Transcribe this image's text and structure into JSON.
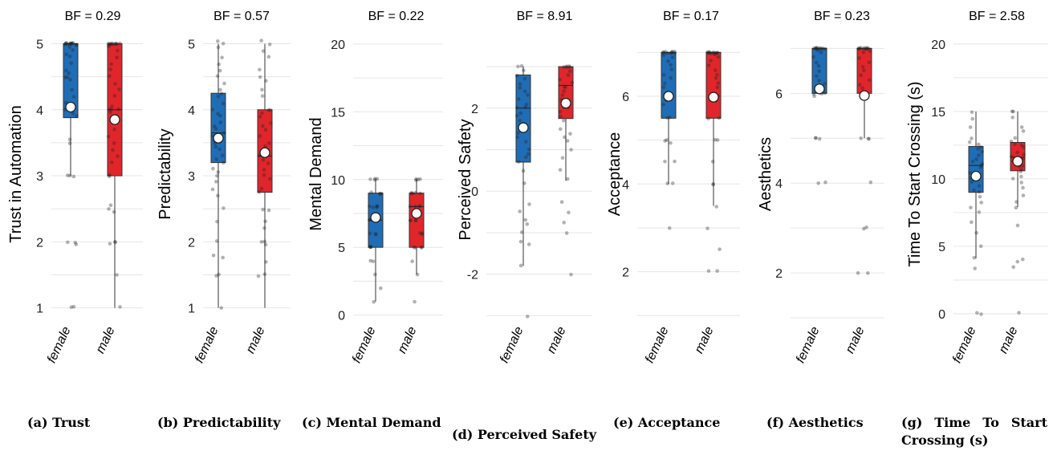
{
  "colors": {
    "female": "#1f6db5",
    "male": "#e0262b",
    "grid": "#e6e6e6",
    "point": "#222222"
  },
  "chart_data": [
    {
      "type": "box",
      "caption": "(a) Trust",
      "bf": "BF = 0.29",
      "ylabel": "Trust in Automation",
      "categories": [
        "female",
        "male"
      ],
      "ylim": [
        0.85,
        5.2
      ],
      "ticks": [
        1,
        2,
        3,
        4,
        5
      ],
      "tick_labels": [
        "1",
        "2",
        "3",
        "4",
        "5"
      ],
      "boxes": [
        {
          "q1": 3.88,
          "median": 5,
          "q3": 5,
          "whisker_low": 3.0,
          "whisker_high": 5,
          "mean": 4.04
        },
        {
          "q1": 3.0,
          "median": 4.0,
          "q3": 5,
          "whisker_low": 1.0,
          "whisker_high": 5,
          "mean": 3.85
        }
      ],
      "points": [
        [
          5,
          5,
          5,
          5,
          5,
          5,
          5,
          5,
          5,
          5,
          5,
          5,
          5,
          4.97,
          4.95,
          4.9,
          4.85,
          4.8,
          4.7,
          4.6,
          4.55,
          4.5,
          4.5,
          4.45,
          4.3,
          4.2,
          4.1,
          4.05,
          4.0,
          3.95,
          3.9,
          3.55,
          3.5,
          3.0,
          3.0,
          2.98,
          2.0,
          2.0,
          1.97,
          1.02,
          1.0
        ],
        [
          5,
          5,
          5,
          5,
          5,
          5,
          5,
          5,
          5,
          5,
          5,
          4.95,
          4.9,
          4.8,
          4.7,
          4.6,
          4.5,
          4.4,
          4.3,
          4.2,
          4.05,
          4.0,
          4.0,
          4.0,
          3.95,
          3.9,
          3.8,
          3.7,
          3.6,
          3.5,
          3.4,
          3.3,
          3.2,
          3.0,
          3.0,
          2.55,
          2.5,
          2.45,
          2.0,
          2.0,
          1.98,
          1.5,
          1.02
        ]
      ]
    },
    {
      "type": "box",
      "caption": "(b) Predictability",
      "bf": "BF = 0.57",
      "ylabel": "Predictability",
      "categories": [
        "female",
        "male"
      ],
      "ylim": [
        0.85,
        5.2
      ],
      "ticks": [
        1,
        2,
        3,
        4,
        5
      ],
      "tick_labels": [
        "1",
        "2",
        "3",
        "4",
        "5"
      ],
      "boxes": [
        {
          "q1": 3.2,
          "median": 3.65,
          "q3": 4.25,
          "whisker_low": 1.0,
          "whisker_high": 5,
          "mean": 3.57
        },
        {
          "q1": 2.75,
          "median": 3.3,
          "q3": 4.0,
          "whisker_low": 1.0,
          "whisker_high": 5,
          "mean": 3.35
        }
      ],
      "points": [
        [
          5.05,
          5.0,
          4.95,
          4.8,
          4.7,
          4.6,
          4.5,
          4.4,
          4.3,
          4.25,
          4.2,
          4.1,
          4.0,
          3.95,
          3.9,
          3.8,
          3.75,
          3.7,
          3.65,
          3.6,
          3.55,
          3.5,
          3.45,
          3.4,
          3.3,
          3.25,
          3.2,
          3.1,
          3.05,
          3.0,
          2.9,
          2.8,
          2.7,
          2.5,
          2.3,
          2.0,
          1.8,
          1.75,
          1.5,
          1.48,
          1.0
        ],
        [
          5.05,
          5.0,
          4.9,
          4.8,
          4.6,
          4.5,
          4.45,
          4.3,
          4.2,
          4.0,
          4.0,
          3.95,
          3.9,
          3.8,
          3.75,
          3.7,
          3.6,
          3.5,
          3.45,
          3.4,
          3.3,
          3.25,
          3.2,
          3.1,
          3.0,
          2.95,
          2.8,
          2.75,
          2.5,
          2.48,
          2.3,
          2.2,
          2.0,
          2.0,
          1.95,
          1.7,
          1.5,
          1.48
        ]
      ]
    },
    {
      "type": "box",
      "caption": "(c) Mental Demand",
      "bf": "BF = 0.22",
      "ylabel": "Mental Demand",
      "categories": [
        "female",
        "male"
      ],
      "ylim": [
        -0.2,
        21.0
      ],
      "ticks": [
        0,
        5,
        10,
        15,
        20
      ],
      "tick_labels": [
        "0",
        "5",
        "10",
        "15",
        "20"
      ],
      "boxes": [
        {
          "q1": 5,
          "median": 7,
          "q3": 9,
          "whisker_low": 1,
          "whisker_high": 10,
          "mean": 7.2
        },
        {
          "q1": 5,
          "median": 8,
          "q3": 9,
          "whisker_low": 3,
          "whisker_high": 10,
          "mean": 7.5
        }
      ],
      "points": [
        [
          10,
          10,
          10,
          10,
          9,
          9,
          9,
          9,
          8,
          8,
          8,
          8,
          8,
          7,
          7,
          7,
          7,
          6,
          6,
          6,
          5,
          5,
          5,
          5,
          4,
          4,
          3,
          2,
          1
        ],
        [
          10,
          10,
          10,
          10,
          9,
          9,
          9,
          9,
          9,
          8,
          8,
          8,
          8,
          7,
          7,
          7,
          7,
          6,
          6,
          6,
          5,
          5,
          5,
          5,
          4,
          3,
          1
        ]
      ]
    },
    {
      "type": "box",
      "caption": "(d) Perceived Safety",
      "bf": "BF = 8.91",
      "ylabel": "Perceived Safety",
      "categories": [
        "female",
        "male"
      ],
      "ylim": [
        -3.05,
        3.6
      ],
      "ticks": [
        -2,
        0,
        2
      ],
      "tick_labels": [
        "-2",
        "0",
        "2"
      ],
      "boxes": [
        {
          "q1": 0.7,
          "median": 2.0,
          "q3": 2.8,
          "whisker_low": -1.8,
          "whisker_high": 3.0,
          "mean": 1.53
        },
        {
          "q1": 1.75,
          "median": 2.55,
          "q3": 3.0,
          "whisker_low": 0.25,
          "whisker_high": 3.0,
          "mean": 2.12
        }
      ],
      "points": [
        [
          3.0,
          3.0,
          2.9,
          2.8,
          2.7,
          2.6,
          2.5,
          2.4,
          2.3,
          2.2,
          2.1,
          2.0,
          2.0,
          1.9,
          1.8,
          1.7,
          1.6,
          1.5,
          1.4,
          1.3,
          1.2,
          1.0,
          0.9,
          0.8,
          0.7,
          0.5,
          0.2,
          -0.3,
          -0.5,
          -0.7,
          -0.8,
          -1.0,
          -1.2,
          -1.3,
          -1.8,
          -3.0
        ],
        [
          3.0,
          3.0,
          3.0,
          3.0,
          3.0,
          2.9,
          2.8,
          2.7,
          2.6,
          2.5,
          2.5,
          2.4,
          2.3,
          2.2,
          2.1,
          2.0,
          2.0,
          1.9,
          1.8,
          1.7,
          1.5,
          1.4,
          1.3,
          1.2,
          1.0,
          0.8,
          0.5,
          0.3,
          -0.25,
          -0.5,
          -0.75,
          -1.0,
          -2.0
        ]
      ]
    },
    {
      "type": "box",
      "caption": "(e) Acceptance",
      "bf": "BF = 0.17",
      "ylabel": "Acceptance",
      "categories": [
        "female",
        "male"
      ],
      "ylim": [
        0.95,
        7.5
      ],
      "ticks": [
        2,
        4,
        6
      ],
      "tick_labels": [
        "2",
        "4",
        "6"
      ],
      "boxes": [
        {
          "q1": 5.5,
          "median": 7,
          "q3": 7,
          "whisker_low": 4.0,
          "whisker_high": 7,
          "mean": 6.0
        },
        {
          "q1": 5.5,
          "median": 7,
          "q3": 7,
          "whisker_low": 3.5,
          "whisker_high": 7,
          "mean": 5.98
        }
      ],
      "points": [
        [
          7,
          7,
          7,
          7,
          7,
          7,
          7,
          7,
          7,
          7,
          6.95,
          6.9,
          6.8,
          6.7,
          6.6,
          6.5,
          6.4,
          6.3,
          6.2,
          6.1,
          6.0,
          6.0,
          5.9,
          5.8,
          5.5,
          5.5,
          5.0,
          5.0,
          4.95,
          4.5,
          4.5,
          4.0,
          4.0,
          3.0
        ],
        [
          7,
          7,
          7,
          7,
          7,
          7,
          7,
          7,
          7,
          7,
          7,
          6.95,
          6.9,
          6.8,
          6.7,
          6.6,
          6.5,
          6.4,
          6.3,
          6.2,
          6.0,
          6.0,
          5.9,
          5.5,
          5.5,
          5.0,
          5.0,
          4.5,
          4.0,
          4.0,
          3.5,
          3.0,
          2.5,
          2.0,
          2.0
        ]
      ]
    },
    {
      "type": "box",
      "caption": "(f) Aesthetics",
      "bf": "BF = 0.23",
      "ylabel": "Aesthetics",
      "categories": [
        "female",
        "male"
      ],
      "ylim": [
        1.0,
        7.4
      ],
      "ticks": [
        2,
        4,
        6
      ],
      "tick_labels": [
        "2",
        "4",
        "6"
      ],
      "boxes": [
        {
          "q1": 6.0,
          "median": 7,
          "q3": 7,
          "whisker_low": 6.0,
          "whisker_high": 7,
          "mean": 6.1
        },
        {
          "q1": 6.0,
          "median": 7,
          "q3": 7,
          "whisker_low": 5.0,
          "whisker_high": 7,
          "mean": 5.95
        }
      ],
      "points": [
        [
          7,
          7,
          7,
          7,
          7,
          7,
          7,
          7,
          7,
          7,
          6.95,
          6.9,
          6.8,
          6.7,
          6.6,
          6.5,
          6.4,
          6.3,
          6.2,
          6.1,
          6.0,
          6.0,
          6.0,
          6.0,
          5.95,
          5.0,
          5.0,
          5.0,
          4.0,
          4.0
        ],
        [
          7,
          7,
          7,
          7,
          7,
          7,
          7,
          7,
          7,
          7,
          6.95,
          6.9,
          6.8,
          6.7,
          6.6,
          6.5,
          6.4,
          6.3,
          6.2,
          6.1,
          6.0,
          6.0,
          6.0,
          5.0,
          5.0,
          5.0,
          4.0,
          3.0,
          3.0,
          2.0,
          2.0
        ]
      ]
    },
    {
      "type": "box",
      "caption": "(g) Time To Start Crossing (s)",
      "bf": "BF = 2.58",
      "ylabel": "Time To Start Crossing (s)",
      "categories": [
        "female",
        "male"
      ],
      "ylim": [
        -0.3,
        21.0
      ],
      "ticks": [
        0,
        5,
        10,
        15,
        20
      ],
      "tick_labels": [
        "0",
        "5",
        "10",
        "15",
        "20"
      ],
      "boxes": [
        {
          "q1": 9.0,
          "median": 11.0,
          "q3": 12.4,
          "whisker_low": 4.1,
          "whisker_high": 15.0,
          "mean": 10.2
        },
        {
          "q1": 10.6,
          "median": 11.6,
          "q3": 12.7,
          "whisker_low": 7.9,
          "whisker_high": 15.0,
          "mean": 11.3
        }
      ],
      "points": [
        [
          15.0,
          14.5,
          13.8,
          13.0,
          12.7,
          12.5,
          12.3,
          12.2,
          12.0,
          11.8,
          11.5,
          11.3,
          11.1,
          11.0,
          10.8,
          10.5,
          10.2,
          10.0,
          9.8,
          9.5,
          9.2,
          9.0,
          8.7,
          8.3,
          7.9,
          7.5,
          6.8,
          6.0,
          5.0,
          4.1,
          3.3,
          0.1,
          0.0
        ],
        [
          15.0,
          15.0,
          14.5,
          13.8,
          13.5,
          13.0,
          12.8,
          12.6,
          12.5,
          12.3,
          12.0,
          11.8,
          11.7,
          11.5,
          11.3,
          11.2,
          11.0,
          10.9,
          10.7,
          10.5,
          10.2,
          10.0,
          9.7,
          9.3,
          8.8,
          8.3,
          7.9,
          6.5,
          4.0,
          3.8,
          3.5,
          0.1
        ]
      ]
    }
  ]
}
